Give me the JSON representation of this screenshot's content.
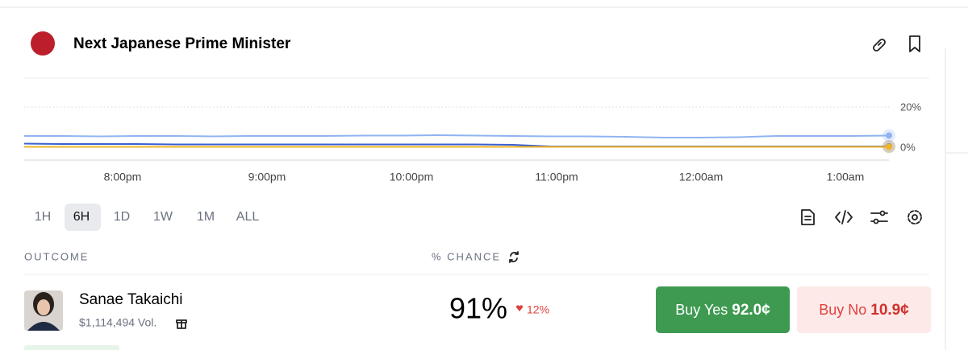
{
  "header": {
    "title": "Next Japanese Prime Minister"
  },
  "chart": {
    "type": "line",
    "x_ticks": [
      "8:00pm",
      "9:00pm",
      "10:00pm",
      "11:00pm",
      "12:00am",
      "1:00am"
    ],
    "ylim": [
      0,
      20
    ],
    "yticks": [
      {
        "value": 0,
        "label": "0%"
      },
      {
        "value": 20,
        "label": "20%"
      }
    ],
    "series": [
      {
        "color": "#8fb4f0",
        "values": [
          5.6,
          5.6,
          5.4,
          5.6,
          5.6,
          5.4,
          5.6,
          5.6,
          5.6,
          5.8,
          5.8,
          6.0,
          5.8,
          5.6,
          5.4,
          5.4,
          5.2,
          4.8,
          4.8,
          5.0,
          5.6,
          5.6,
          5.6,
          5.8
        ]
      },
      {
        "color": "#3a5fcf",
        "values": [
          1.8,
          1.6,
          1.6,
          1.6,
          1.4,
          1.4,
          1.4,
          1.4,
          1.4,
          1.4,
          1.4,
          1.4,
          1.4,
          1.2,
          0.4,
          0.4,
          0.4,
          0.4,
          0.4,
          0.4,
          0.4,
          0.4,
          0.4,
          0.4
        ]
      },
      {
        "color": "#f0b429",
        "values": [
          0.2,
          0.2,
          0.2,
          0.2,
          0.2,
          0.2,
          0.2,
          0.2,
          0.2,
          0.2,
          0.2,
          0.2,
          0.2,
          0.2,
          0.2,
          0.2,
          0.2,
          0.2,
          0.2,
          0.2,
          0.2,
          0.2,
          0.2,
          0.2
        ]
      }
    ]
  },
  "ranges": {
    "options": [
      "1H",
      "6H",
      "1D",
      "1W",
      "1M",
      "ALL"
    ],
    "selected": "6H"
  },
  "table": {
    "headers": [
      "OUTCOME",
      "% CHANCE"
    ],
    "rows": [
      {
        "name": "Sanae Takaichi",
        "volume": "$1,114,494 Vol.",
        "chance": "91%",
        "change": "12%",
        "buy_yes": "Buy Yes",
        "yes_price": "92.0¢",
        "buy_no": "Buy No",
        "no_price": "10.9¢"
      }
    ]
  }
}
